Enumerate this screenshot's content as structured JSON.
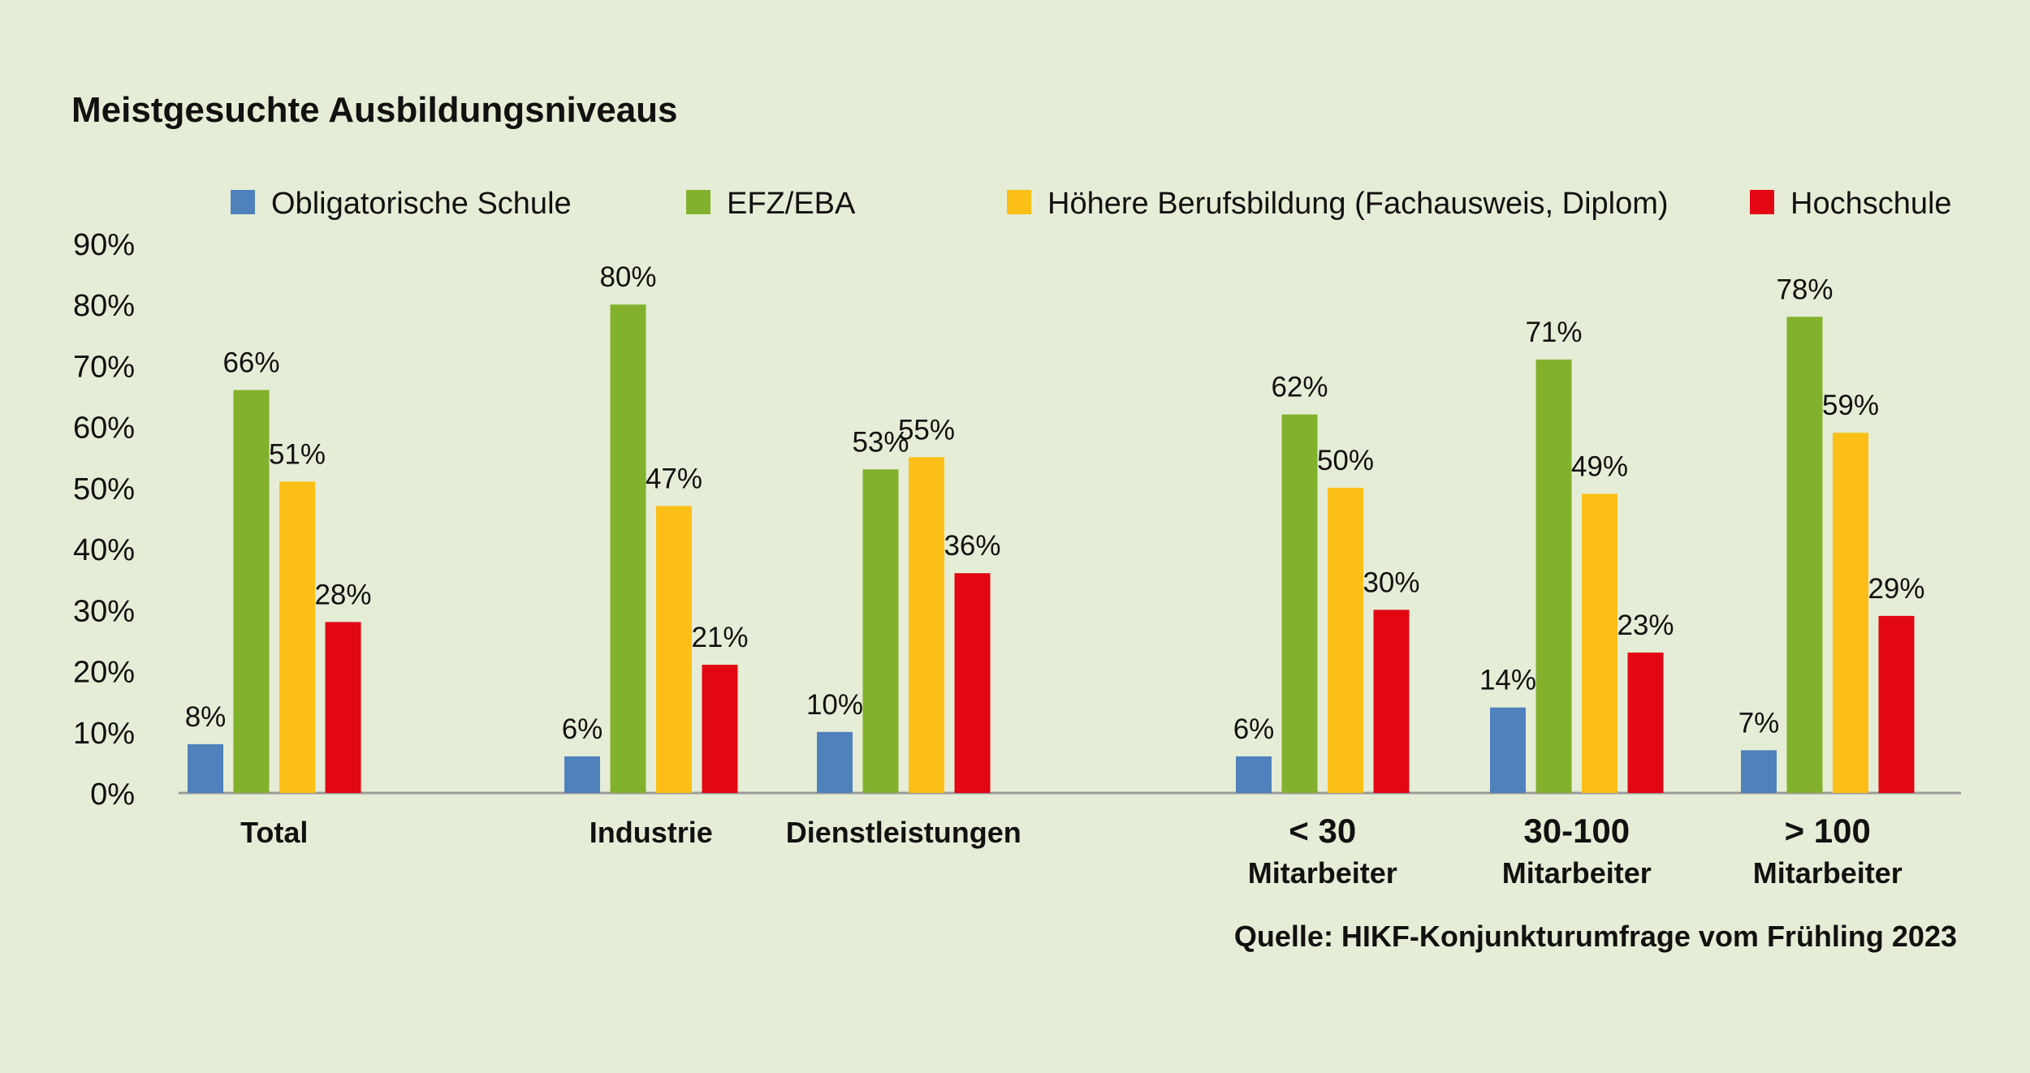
{
  "chart_data": {
    "type": "bar",
    "title": "Meistgesuchte Ausbildungsniveaus",
    "source": "Quelle: HIKF-Konjunkturumfrage vom Frühling 2023",
    "categories": [
      "Total",
      "Industrie",
      "Dienstleistungen",
      "< 30\nMitarbeiter",
      "30-100\nMitarbeiter",
      "> 100\nMitarbeiter"
    ],
    "series": [
      {
        "name": "Obligatorische Schule",
        "color": "#4f81bd",
        "values": [
          8,
          6,
          10,
          6,
          14,
          7
        ]
      },
      {
        "name": "EFZ/EBA",
        "color": "#82b12d",
        "values": [
          66,
          80,
          53,
          62,
          71,
          78
        ]
      },
      {
        "name": "Höhere Berufsbildung (Fachausweis, Diplom)",
        "color": "#fcbf17",
        "values": [
          51,
          47,
          55,
          50,
          49,
          59
        ]
      },
      {
        "name": "Hochschule",
        "color": "#e30613",
        "values": [
          28,
          21,
          36,
          30,
          23,
          29
        ]
      }
    ],
    "ylim": [
      0,
      90
    ],
    "yticks": [
      "0%",
      "10%",
      "20%",
      "30%",
      "40%",
      "50%",
      "60%",
      "70%",
      "80%",
      "90%"
    ],
    "value_suffix": "%",
    "grid": false,
    "legend_position": "top",
    "background": "#e6edd6",
    "axis_color": "#9a9a9a"
  }
}
